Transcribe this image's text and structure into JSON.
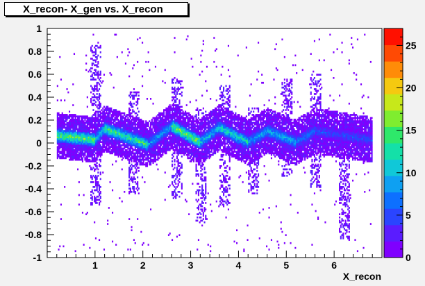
{
  "chart_data": {
    "type": "heatmap",
    "title": "X_recon- X_gen vs. X_recon",
    "xlabel": "X_recon",
    "ylabel": "",
    "xlim": [
      0.0,
      7.0
    ],
    "ylim": [
      -1.0,
      1.0
    ],
    "x_ticks": [
      "1",
      "2",
      "3",
      "4",
      "5",
      "6"
    ],
    "y_ticks": [
      "1",
      "0.8",
      "0.6",
      "0.4",
      "0.2",
      "0",
      "-0.2",
      "-0.4",
      "-0.6",
      "-0.8",
      "-1"
    ],
    "color_scale": {
      "min": 0,
      "max": 27,
      "ticks": [
        "0",
        "5",
        "10",
        "15",
        "20",
        "25"
      ],
      "colors": [
        "#7f00ff",
        "#5a1cff",
        "#2a45ff",
        "#0d70ff",
        "#0ea0f2",
        "#10c8d8",
        "#14e0a8",
        "#2ee86a",
        "#7fed2f",
        "#c7e81a",
        "#f5c910",
        "#ff8c08",
        "#ff4a04",
        "#ff1000"
      ]
    },
    "density_model": {
      "x_range": [
        0.2,
        6.8
      ],
      "bands": [
        {
          "x": [
            0.2,
            1.0
          ],
          "y_center": [
            0.06,
            0.02
          ],
          "peak": 18
        },
        {
          "x": [
            1.0,
            1.2
          ],
          "y_center": [
            0.02,
            0.12
          ],
          "peak": 12
        },
        {
          "x": [
            1.2,
            2.1
          ],
          "y_center": [
            0.12,
            -0.02
          ],
          "peak": 16
        },
        {
          "x": [
            2.1,
            2.6
          ],
          "y_center": [
            -0.02,
            0.14
          ],
          "peak": 10
        },
        {
          "x": [
            2.6,
            3.2
          ],
          "y_center": [
            0.14,
            0.0
          ],
          "peak": 19
        },
        {
          "x": [
            3.2,
            3.6
          ],
          "y_center": [
            0.0,
            0.13
          ],
          "peak": 12
        },
        {
          "x": [
            3.6,
            4.2
          ],
          "y_center": [
            0.13,
            0.0
          ],
          "peak": 14
        },
        {
          "x": [
            4.2,
            4.6
          ],
          "y_center": [
            0.0,
            0.1
          ],
          "peak": 10
        },
        {
          "x": [
            4.6,
            5.2
          ],
          "y_center": [
            0.1,
            0.0
          ],
          "peak": 11
        },
        {
          "x": [
            5.2,
            5.6
          ],
          "y_center": [
            0.0,
            0.1
          ],
          "peak": 8
        },
        {
          "x": [
            5.6,
            6.8
          ],
          "y_center": [
            0.1,
            0.02
          ],
          "peak": 6
        }
      ],
      "spikes": [
        {
          "x": 1.0,
          "y_range": [
            -0.55,
            0.85
          ]
        },
        {
          "x": 1.8,
          "y_range": [
            -0.45,
            0.45
          ]
        },
        {
          "x": 2.7,
          "y_range": [
            -0.5,
            0.55
          ]
        },
        {
          "x": 3.2,
          "y_range": [
            -0.7,
            0.3
          ]
        },
        {
          "x": 3.7,
          "y_range": [
            -0.55,
            0.5
          ]
        },
        {
          "x": 4.3,
          "y_range": [
            -0.45,
            0.3
          ]
        },
        {
          "x": 5.0,
          "y_range": [
            -0.3,
            0.55
          ]
        },
        {
          "x": 5.6,
          "y_range": [
            -0.4,
            0.6
          ]
        },
        {
          "x": 6.2,
          "y_range": [
            -0.85,
            0.1
          ]
        }
      ]
    }
  }
}
